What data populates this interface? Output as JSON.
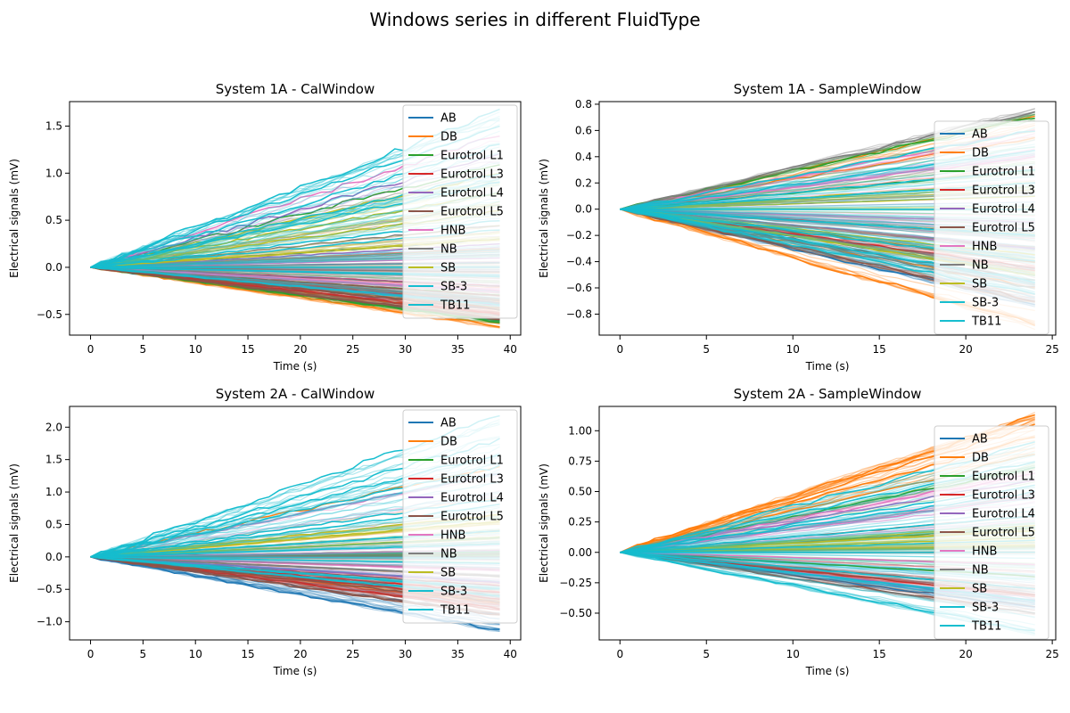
{
  "figure": {
    "title": "Windows series in different FluidType"
  },
  "palette": {
    "AB": "#1f77b4",
    "DB": "#ff7f0e",
    "Eurotrol L1": "#2ca02c",
    "Eurotrol L3": "#d62728",
    "Eurotrol L4": "#9467bd",
    "Eurotrol L5": "#8c564b",
    "HNB": "#e377c2",
    "NB": "#7f7f7f",
    "SB": "#bcbd22",
    "SB-3": "#17becf",
    "TB11": "#17becf"
  },
  "chart_data": [
    {
      "type": "line",
      "title": "System 1A - CalWindow",
      "xlabel": "Time (s)",
      "ylabel": "Electrical signals (mV)",
      "xlim": [
        -2,
        41
      ],
      "ylim": [
        -0.72,
        1.76
      ],
      "xticks": [
        0,
        5,
        10,
        15,
        20,
        25,
        30,
        35,
        40
      ],
      "yticks": [
        -0.5,
        0.0,
        0.5,
        1.0,
        1.5
      ],
      "ytick_labels": [
        "−0.5",
        "0.0",
        "0.5",
        "1.0",
        "1.5"
      ],
      "legend": "top-right",
      "grid": false,
      "x_end": 39,
      "series": [
        {
          "name": "AB",
          "end_values": [
            -0.57,
            -0.45,
            -0.2,
            0.05,
            0.3
          ]
        },
        {
          "name": "DB",
          "end_values": [
            -0.62,
            -0.5,
            -0.35,
            0.0,
            0.2
          ]
        },
        {
          "name": "Eurotrol L1",
          "end_values": [
            -0.58,
            -0.3,
            -0.1,
            1.1
          ]
        },
        {
          "name": "Eurotrol L3",
          "end_values": [
            -0.5,
            -0.38,
            -0.2
          ]
        },
        {
          "name": "Eurotrol L4",
          "end_values": [
            -0.4,
            0.25,
            1.2
          ]
        },
        {
          "name": "Eurotrol L5",
          "end_values": [
            -0.55,
            -0.45,
            -0.3
          ]
        },
        {
          "name": "HNB",
          "end_values": [
            -0.25,
            -0.1,
            0.1,
            1.4
          ]
        },
        {
          "name": "NB",
          "end_values": [
            -0.35,
            -0.05,
            0.45
          ]
        },
        {
          "name": "SB",
          "end_values": [
            0.3,
            0.6,
            0.8,
            1.0
          ]
        },
        {
          "name": "SB-3",
          "end_values": [
            -0.1,
            0.4,
            0.9,
            1.3
          ]
        },
        {
          "name": "TB11",
          "end_values": [
            -0.4,
            0.0,
            0.5,
            1.0,
            1.5,
            1.65
          ]
        }
      ]
    },
    {
      "type": "line",
      "title": "System 1A - SampleWindow",
      "xlabel": "Time (s)",
      "ylabel": "Electrical signals (mV)",
      "xlim": [
        -1.2,
        25.2
      ],
      "ylim": [
        -0.96,
        0.82
      ],
      "xticks": [
        0,
        5,
        10,
        15,
        20,
        25
      ],
      "yticks": [
        -0.8,
        -0.6,
        -0.4,
        -0.2,
        0.0,
        0.2,
        0.4,
        0.6,
        0.8
      ],
      "ytick_labels": [
        "−0.8",
        "−0.6",
        "−0.4",
        "−0.2",
        "0.0",
        "0.2",
        "0.4",
        "0.6",
        "0.8"
      ],
      "legend": "right",
      "grid": false,
      "x_end": 24,
      "series": [
        {
          "name": "AB",
          "end_values": [
            -0.72,
            -0.5,
            -0.3,
            0.2
          ]
        },
        {
          "name": "DB",
          "end_values": [
            -0.88,
            -0.6,
            0.55,
            0.7
          ]
        },
        {
          "name": "Eurotrol L1",
          "end_values": [
            0.7,
            0.3,
            -0.4
          ]
        },
        {
          "name": "Eurotrol L3",
          "end_values": [
            -0.45,
            -0.2
          ]
        },
        {
          "name": "Eurotrol L4",
          "end_values": [
            -0.3,
            0.1
          ]
        },
        {
          "name": "Eurotrol L5",
          "end_values": [
            -0.7,
            -0.55,
            -0.4
          ]
        },
        {
          "name": "HNB",
          "end_values": [
            0.4,
            0.6,
            -0.1
          ]
        },
        {
          "name": "NB",
          "end_values": [
            0.75,
            -0.6,
            0.0
          ]
        },
        {
          "name": "SB",
          "end_values": [
            -0.5,
            -0.35,
            0.1,
            0.2
          ]
        },
        {
          "name": "SB-3",
          "end_values": [
            -0.55,
            -0.2,
            0.3
          ]
        },
        {
          "name": "TB11",
          "end_values": [
            -0.65,
            -0.4,
            -0.2,
            0.0,
            0.2,
            0.45,
            0.6
          ]
        }
      ]
    },
    {
      "type": "line",
      "title": "System 2A - CalWindow",
      "xlabel": "Time (s)",
      "ylabel": "Electrical signals (mV)",
      "xlim": [
        -2,
        41
      ],
      "ylim": [
        -1.28,
        2.32
      ],
      "xticks": [
        0,
        5,
        10,
        15,
        20,
        25,
        30,
        35,
        40
      ],
      "yticks": [
        -1.0,
        -0.5,
        0.0,
        0.5,
        1.0,
        1.5,
        2.0
      ],
      "ytick_labels": [
        "−1.0",
        "−0.5",
        "0.0",
        "0.5",
        "1.0",
        "1.5",
        "2.0"
      ],
      "legend": "top-right",
      "grid": false,
      "x_end": 39,
      "series": [
        {
          "name": "AB",
          "end_values": [
            -1.13,
            -0.9,
            -0.6
          ]
        },
        {
          "name": "DB",
          "end_values": [
            -0.7,
            -0.3,
            1.4
          ]
        },
        {
          "name": "Eurotrol L1",
          "end_values": [
            0.05,
            0.1,
            -0.2
          ]
        },
        {
          "name": "Eurotrol L3",
          "end_values": [
            -0.8,
            -0.65,
            -0.55,
            -0.45
          ]
        },
        {
          "name": "Eurotrol L4",
          "end_values": [
            -0.4,
            0.3
          ]
        },
        {
          "name": "Eurotrol L5",
          "end_values": [
            -0.9,
            -0.7,
            -0.6
          ]
        },
        {
          "name": "HNB",
          "end_values": [
            -0.2,
            0.1,
            1.3
          ]
        },
        {
          "name": "NB",
          "end_values": [
            -0.3,
            0.0,
            0.4
          ]
        },
        {
          "name": "SB",
          "end_values": [
            0.3,
            0.55,
            0.65
          ]
        },
        {
          "name": "SB-3",
          "end_values": [
            -0.5,
            0.2,
            0.8,
            1.6
          ]
        },
        {
          "name": "TB11",
          "end_values": [
            -0.6,
            -0.1,
            0.4,
            0.9,
            1.4,
            1.8,
            2.17
          ]
        }
      ]
    },
    {
      "type": "line",
      "title": "System 2A - SampleWindow",
      "xlabel": "Time (s)",
      "ylabel": "Electrical signals (mV)",
      "xlim": [
        -1.2,
        25.2
      ],
      "ylim": [
        -0.72,
        1.2
      ],
      "xticks": [
        0,
        5,
        10,
        15,
        20,
        25
      ],
      "yticks": [
        -0.5,
        -0.25,
        0.0,
        0.25,
        0.5,
        0.75,
        1.0
      ],
      "ytick_labels": [
        "−0.50",
        "−0.25",
        "0.00",
        "0.25",
        "0.50",
        "0.75",
        "1.00"
      ],
      "legend": "right",
      "grid": false,
      "x_end": 24,
      "series": [
        {
          "name": "AB",
          "end_values": [
            -0.45,
            -0.3,
            0.0
          ]
        },
        {
          "name": "DB",
          "end_values": [
            1.12,
            1.05,
            0.95,
            0.8
          ]
        },
        {
          "name": "Eurotrol L1",
          "end_values": [
            0.7,
            -0.2,
            0.2
          ]
        },
        {
          "name": "Eurotrol L3",
          "end_values": [
            -0.35,
            0.05
          ]
        },
        {
          "name": "Eurotrol L4",
          "end_values": [
            -0.4,
            0.6
          ]
        },
        {
          "name": "Eurotrol L5",
          "end_values": [
            -0.5,
            -0.3
          ]
        },
        {
          "name": "HNB",
          "end_values": [
            0.65,
            0.45,
            -0.1
          ]
        },
        {
          "name": "NB",
          "end_values": [
            -0.3,
            0.3
          ]
        },
        {
          "name": "SB",
          "end_values": [
            0.05,
            0.12,
            0.18,
            0.22
          ]
        },
        {
          "name": "SB-3",
          "end_values": [
            -0.4,
            0.1,
            0.5
          ]
        },
        {
          "name": "TB11",
          "end_values": [
            -0.65,
            -0.3,
            0.0,
            0.3,
            0.55,
            0.75,
            0.9
          ]
        }
      ]
    }
  ]
}
